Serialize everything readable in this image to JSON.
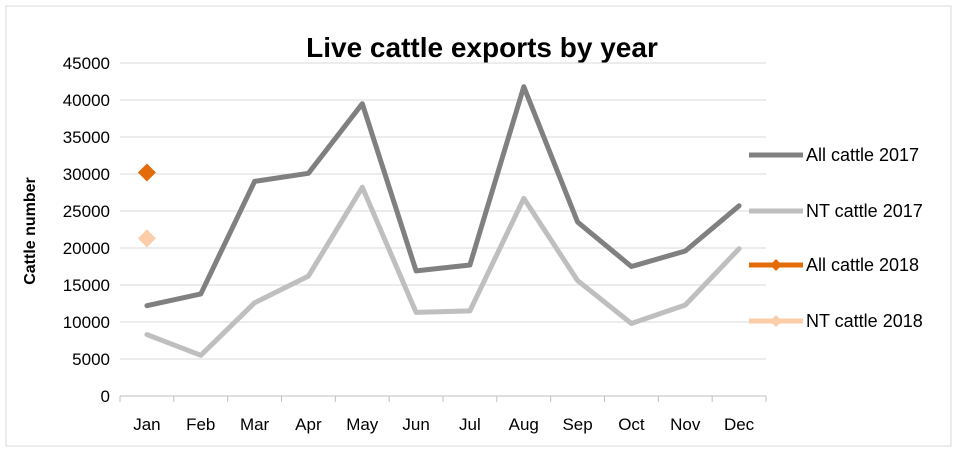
{
  "chart_data": {
    "type": "line",
    "title": "Live cattle exports by year",
    "xlabel": "",
    "ylabel": "Cattle number",
    "categories": [
      "Jan",
      "Feb",
      "Mar",
      "Apr",
      "May",
      "Jun",
      "Jul",
      "Aug",
      "Sep",
      "Oct",
      "Nov",
      "Dec"
    ],
    "ylim": [
      0,
      45000
    ],
    "yticks": [
      0,
      5000,
      10000,
      15000,
      20000,
      25000,
      30000,
      35000,
      40000,
      45000
    ],
    "grid": true,
    "legend_position": "right",
    "series": [
      {
        "name": "All cattle 2017",
        "color": "#808080",
        "marker": "none",
        "values": [
          12200,
          13800,
          29000,
          30100,
          39500,
          16900,
          17700,
          41800,
          23500,
          17500,
          19600,
          25700
        ]
      },
      {
        "name": "NT cattle 2017",
        "color": "#bfbfbf",
        "marker": "none",
        "values": [
          8300,
          5500,
          12600,
          16200,
          28200,
          11300,
          11500,
          26700,
          15600,
          9800,
          12300,
          19900
        ]
      },
      {
        "name": "All cattle 2018",
        "color": "#e36c09",
        "marker": "diamond",
        "values": [
          30200,
          null,
          null,
          null,
          null,
          null,
          null,
          null,
          null,
          null,
          null,
          null
        ]
      },
      {
        "name": "NT cattle 2018",
        "color": "#fbcda9",
        "marker": "diamond",
        "values": [
          21300,
          null,
          null,
          null,
          null,
          null,
          null,
          null,
          null,
          null,
          null,
          null
        ]
      }
    ]
  }
}
